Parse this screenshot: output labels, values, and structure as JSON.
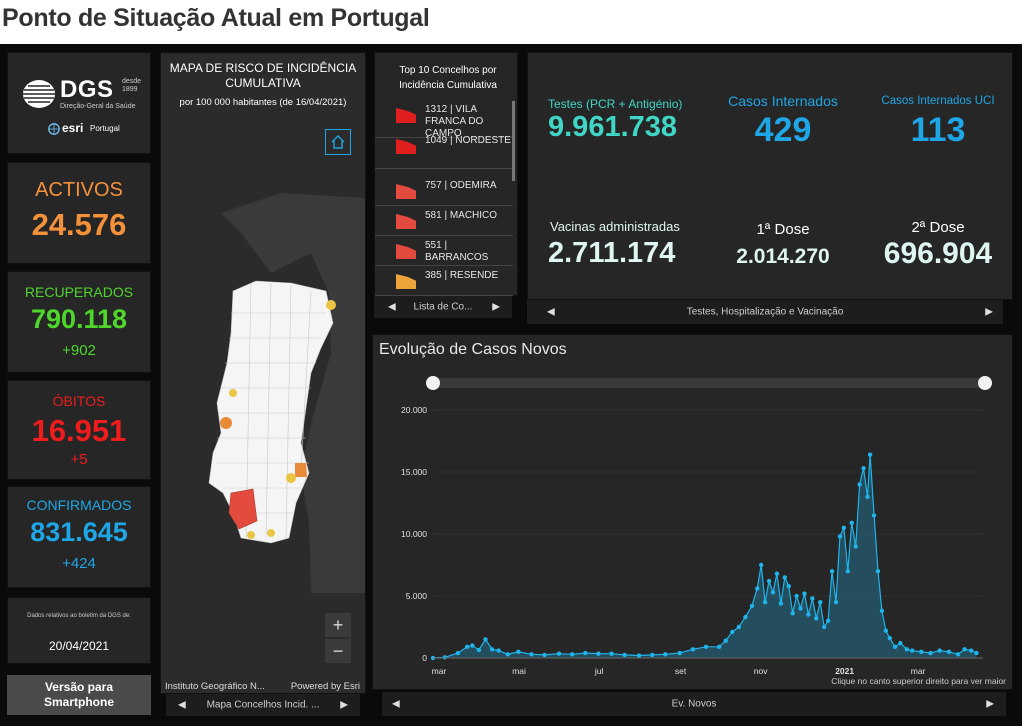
{
  "page_title": "Ponto de Situação Atual em Portugal",
  "logo": {
    "dgs_name": "DGS",
    "dgs_since": "desde",
    "dgs_year": "1899",
    "dgs_subtitle": "Direção-Geral da Saúde",
    "esri_name": "esri",
    "esri_country": "Portugal"
  },
  "kpis": {
    "activos": {
      "label": "ACTIVOS",
      "value": "24.576",
      "color": "#f5913a"
    },
    "recuperados": {
      "label": "RECUPERADOS",
      "value": "790.118",
      "delta": "+902",
      "color": "#4ed62b"
    },
    "obitos": {
      "label": "ÓBITOS",
      "value": "16.951",
      "delta": "+5",
      "color": "#ee1c1c"
    },
    "confirmados": {
      "label": "CONFIRMADOS",
      "value": "831.645",
      "delta": "+424",
      "color": "#1ea6e6"
    }
  },
  "bulletin": {
    "caption": "Dados relativos ao boletim da DGS de:",
    "date": "20/04/2021"
  },
  "smartphone_button": "Versão para Smartphone",
  "map": {
    "title": "MAPA DE RISCO DE INCIDÊNCIA CUMULATIVA",
    "subtitle": "por 100 000 habitantes (de 16/04/2021)",
    "zoom_in": "+",
    "zoom_out": "−",
    "attribution_left": "Instituto Geográfico N...",
    "attribution_right": "Powered by Esri",
    "nav_label": "Mapa Concelhos Incid. ..."
  },
  "top10": {
    "title": "Top 10 Concelhos por Incidência Cumulativa",
    "items": [
      {
        "label": "1312 | VILA FRANCA DO CAMPO",
        "color": "#e01f1f"
      },
      {
        "label": "1049 | NORDESTE",
        "color": "#e01f1f"
      },
      {
        "label": "757 | ODEMIRA",
        "color": "#e24b3e"
      },
      {
        "label": "581 | MACHICO",
        "color": "#e24b3e"
      },
      {
        "label": "551 | BARRANCOS",
        "color": "#e24b3e"
      },
      {
        "label": "385 | RESENDE",
        "color": "#eba53a"
      }
    ],
    "nav_label": "Lista de Co..."
  },
  "stats": {
    "testes": {
      "label": "Testes (PCR + Antigénio)",
      "value": "9.961.738"
    },
    "internados": {
      "label": "Casos Internados",
      "value": "429"
    },
    "uci": {
      "label": "Casos Internados UCI",
      "value": "113"
    },
    "vacinas": {
      "label": "Vacinas administradas",
      "value": "2.711.174"
    },
    "dose1": {
      "label": "1ª Dose",
      "value": "2.014.270"
    },
    "dose2": {
      "label": "2ª Dose",
      "value": "696.904"
    },
    "nav_label": "Testes, Hospitalização e Vacinação"
  },
  "chart_panel": {
    "hint": "Clique no canto superior direito para ver maior",
    "nav_label": "Ev. Novos"
  },
  "chart_data": {
    "type": "area",
    "title": "Evolução de Casos Novos",
    "xlabel": "",
    "ylabel": "",
    "ylim": [
      0,
      20000
    ],
    "yticks": [
      0,
      5000,
      10000,
      15000,
      20000
    ],
    "ytick_labels": [
      "0",
      "5.000",
      "10.000",
      "15.000",
      "20.000"
    ],
    "xtick_labels": [
      "mar",
      "mai",
      "jul",
      "set",
      "nov",
      "2021",
      "mar"
    ],
    "xtick_dates": [
      "2020-03-01",
      "2020-05-01",
      "2020-07-01",
      "2020-09-01",
      "2020-11-01",
      "2021-01-01",
      "2021-03-01"
    ],
    "line_color": "#1fb4ec",
    "series": [
      {
        "points": [
          [
            "2020-03-01",
            0
          ],
          [
            "2020-03-10",
            50
          ],
          [
            "2020-03-20",
            400
          ],
          [
            "2020-03-27",
            900
          ],
          [
            "2020-03-31",
            1000
          ],
          [
            "2020-04-05",
            650
          ],
          [
            "2020-04-10",
            1500
          ],
          [
            "2020-04-15",
            700
          ],
          [
            "2020-04-20",
            600
          ],
          [
            "2020-04-27",
            300
          ],
          [
            "2020-05-05",
            500
          ],
          [
            "2020-05-15",
            300
          ],
          [
            "2020-05-25",
            250
          ],
          [
            "2020-06-05",
            350
          ],
          [
            "2020-06-15",
            300
          ],
          [
            "2020-06-25",
            400
          ],
          [
            "2020-07-05",
            350
          ],
          [
            "2020-07-15",
            350
          ],
          [
            "2020-07-25",
            250
          ],
          [
            "2020-08-05",
            200
          ],
          [
            "2020-08-15",
            250
          ],
          [
            "2020-08-25",
            300
          ],
          [
            "2020-09-05",
            400
          ],
          [
            "2020-09-15",
            700
          ],
          [
            "2020-09-25",
            900
          ],
          [
            "2020-10-05",
            900
          ],
          [
            "2020-10-10",
            1400
          ],
          [
            "2020-10-15",
            2100
          ],
          [
            "2020-10-20",
            2500
          ],
          [
            "2020-10-25",
            3300
          ],
          [
            "2020-10-30",
            4200
          ],
          [
            "2020-11-03",
            5600
          ],
          [
            "2020-11-06",
            7500
          ],
          [
            "2020-11-09",
            4500
          ],
          [
            "2020-11-12",
            6200
          ],
          [
            "2020-11-15",
            5300
          ],
          [
            "2020-11-18",
            6800
          ],
          [
            "2020-11-21",
            4400
          ],
          [
            "2020-11-24",
            6500
          ],
          [
            "2020-11-27",
            5800
          ],
          [
            "2020-11-30",
            3600
          ],
          [
            "2020-12-03",
            5000
          ],
          [
            "2020-12-06",
            4000
          ],
          [
            "2020-12-09",
            5200
          ],
          [
            "2020-12-12",
            3500
          ],
          [
            "2020-12-15",
            4800
          ],
          [
            "2020-12-18",
            3200
          ],
          [
            "2020-12-21",
            4500
          ],
          [
            "2020-12-24",
            2500
          ],
          [
            "2020-12-27",
            3000
          ],
          [
            "2020-12-30",
            7000
          ],
          [
            "2021-01-02",
            4500
          ],
          [
            "2021-01-05",
            9800
          ],
          [
            "2021-01-08",
            10500
          ],
          [
            "2021-01-11",
            7000
          ],
          [
            "2021-01-14",
            10900
          ],
          [
            "2021-01-17",
            9000
          ],
          [
            "2021-01-20",
            14000
          ],
          [
            "2021-01-23",
            15300
          ],
          [
            "2021-01-26",
            13000
          ],
          [
            "2021-01-28",
            16400
          ],
          [
            "2021-01-31",
            11500
          ],
          [
            "2021-02-03",
            7000
          ],
          [
            "2021-02-06",
            3800
          ],
          [
            "2021-02-09",
            2200
          ],
          [
            "2021-02-12",
            1600
          ],
          [
            "2021-02-16",
            900
          ],
          [
            "2021-02-20",
            1200
          ],
          [
            "2021-02-25",
            700
          ],
          [
            "2021-03-01",
            600
          ],
          [
            "2021-03-08",
            500
          ],
          [
            "2021-03-15",
            400
          ],
          [
            "2021-03-22",
            600
          ],
          [
            "2021-03-29",
            500
          ],
          [
            "2021-04-05",
            300
          ],
          [
            "2021-04-10",
            700
          ],
          [
            "2021-04-15",
            600
          ],
          [
            "2021-04-19",
            400
          ]
        ]
      }
    ]
  }
}
